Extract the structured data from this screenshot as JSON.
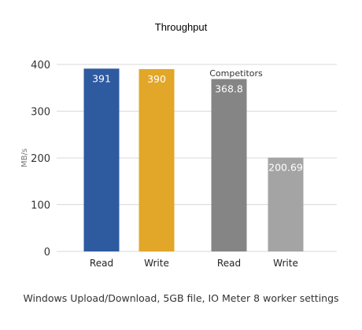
{
  "chart_data": {
    "type": "bar",
    "title": "Throughput",
    "ylabel": "MB/s",
    "ylim": [
      0,
      400
    ],
    "yticks": [
      0,
      100,
      200,
      300,
      400
    ],
    "grid": true,
    "bars": [
      {
        "category": "Read",
        "value": 391,
        "label": "391",
        "color": "#2E5AA0"
      },
      {
        "category": "Write",
        "value": 390,
        "label": "390",
        "color": "#E2A728"
      },
      {
        "category": "Read",
        "value": 368.8,
        "label": "368.8",
        "color": "#858585"
      },
      {
        "category": "Write",
        "value": 200.69,
        "label": "200.69",
        "color": "#A4A4A4"
      }
    ],
    "annotations": [
      "Competitors"
    ]
  },
  "caption": "Windows Upload/Download, 5GB file, IO Meter 8 worker settings"
}
